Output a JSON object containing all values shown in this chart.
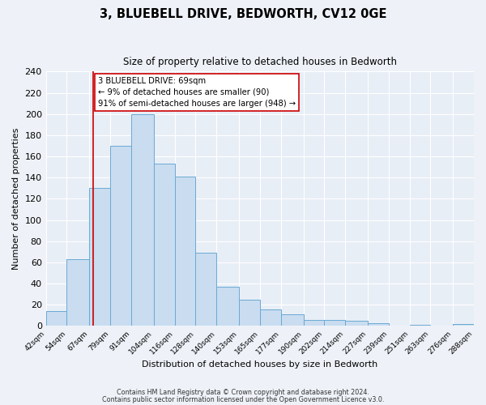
{
  "title": "3, BLUEBELL DRIVE, BEDWORTH, CV12 0GE",
  "subtitle": "Size of property relative to detached houses in Bedworth",
  "xlabel": "Distribution of detached houses by size in Bedworth",
  "ylabel": "Number of detached properties",
  "bar_edges": [
    42,
    54,
    67,
    79,
    91,
    104,
    116,
    128,
    140,
    153,
    165,
    177,
    190,
    202,
    214,
    227,
    239,
    251,
    263,
    276,
    288
  ],
  "bar_heights": [
    14,
    63,
    130,
    170,
    200,
    153,
    141,
    69,
    37,
    25,
    16,
    11,
    6,
    6,
    5,
    3,
    0,
    1,
    0,
    2
  ],
  "bar_color": "#c9dcf0",
  "bar_edgecolor": "#6aaad4",
  "vline_x": 69,
  "vline_color": "#cc0000",
  "annotation_title": "3 BLUEBELL DRIVE: 69sqm",
  "annotation_line1": "← 9% of detached houses are smaller (90)",
  "annotation_line2": "91% of semi-detached houses are larger (948) →",
  "annotation_box_edgecolor": "#cc0000",
  "ylim": [
    0,
    240
  ],
  "yticks": [
    0,
    20,
    40,
    60,
    80,
    100,
    120,
    140,
    160,
    180,
    200,
    220,
    240
  ],
  "tick_labels": [
    "42sqm",
    "54sqm",
    "67sqm",
    "79sqm",
    "91sqm",
    "104sqm",
    "116sqm",
    "128sqm",
    "140sqm",
    "153sqm",
    "165sqm",
    "177sqm",
    "190sqm",
    "202sqm",
    "214sqm",
    "227sqm",
    "239sqm",
    "251sqm",
    "263sqm",
    "276sqm",
    "288sqm"
  ],
  "footer_line1": "Contains HM Land Registry data © Crown copyright and database right 2024.",
  "footer_line2": "Contains public sector information licensed under the Open Government Licence v3.0.",
  "fig_bg_color": "#eef2f8",
  "plot_bg_color": "#e8eef6"
}
